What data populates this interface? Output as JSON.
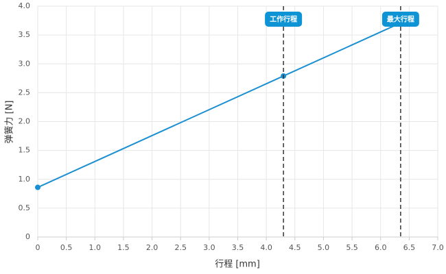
{
  "chart_data": {
    "type": "line",
    "x_label": "行程 [mm]",
    "y_label": "弹簧力 [N]",
    "x": [
      0,
      4.3,
      6.35
    ],
    "series": [
      {
        "color": "#1a8fd1",
        "values": [
          0.86,
          2.79,
          3.71
        ]
      }
    ],
    "xlim": [
      0,
      7
    ],
    "ylim": [
      0,
      4
    ],
    "xticks": [
      0,
      0.5,
      {
        "value": 1,
        "label": "1.0"
      },
      1.5,
      {
        "value": 2,
        "label": "2.0"
      },
      2.5,
      {
        "value": 3,
        "label": "3.0"
      },
      3.5,
      {
        "value": 4,
        "label": "4.0"
      },
      4.5,
      {
        "value": 5,
        "label": "5.0"
      },
      5.5,
      {
        "value": 6,
        "label": "6.0"
      },
      6.5,
      {
        "value": 7,
        "label": "7.0"
      }
    ],
    "yticks": [
      0,
      0.5,
      {
        "value": 1,
        "label": "1.0"
      },
      1.5,
      {
        "value": 2,
        "label": "2.0"
      },
      2.5,
      {
        "value": 3,
        "label": "3.0"
      },
      3.5,
      {
        "value": 4,
        "label": "4.0"
      }
    ],
    "grid": true,
    "annotations": [
      {
        "x": 4.3,
        "label": "工作行程",
        "color": "#0e93d4"
      },
      {
        "x": 6.35,
        "label": "最大行程",
        "color": "#0e93d4"
      }
    ]
  }
}
